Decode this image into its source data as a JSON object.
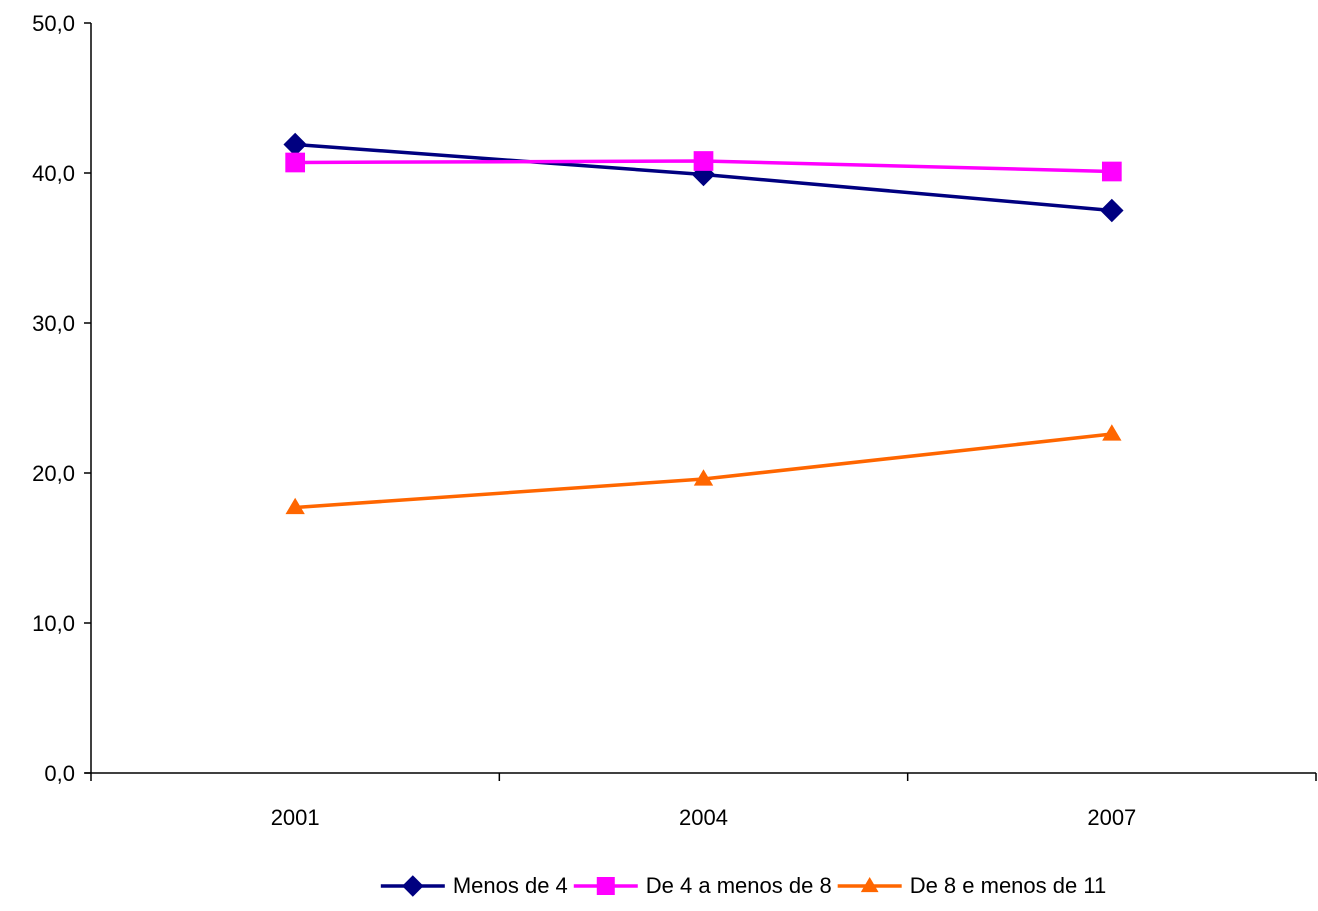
{
  "chart_data": {
    "type": "line",
    "categories": [
      "2001",
      "2004",
      "2007"
    ],
    "series": [
      {
        "name": "Menos de 4",
        "values": [
          41.9,
          39.9,
          37.5
        ],
        "color": "#000080",
        "marker": "diamond"
      },
      {
        "name": "De 4 a menos de 8",
        "values": [
          40.7,
          40.8,
          40.1
        ],
        "color": "#ff00ff",
        "marker": "square"
      },
      {
        "name": "De 8 e menos de 11",
        "values": [
          17.7,
          19.6,
          22.6
        ],
        "color": "#ff6600",
        "marker": "triangle"
      }
    ],
    "ylim": [
      0,
      50
    ],
    "yticks": [
      0,
      10,
      20,
      30,
      40,
      50
    ],
    "ytick_labels": [
      "0,0",
      "10,0",
      "20,0",
      "30,0",
      "40,0",
      "50,0"
    ],
    "grid": false,
    "legend_position": "bottom"
  }
}
